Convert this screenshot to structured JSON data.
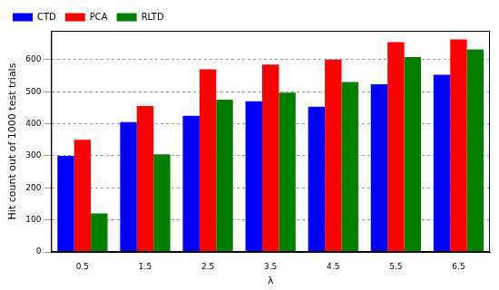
{
  "chart_data": {
    "type": "bar",
    "x_label": "λ",
    "y_label": "Hit count out of 1000 test trials",
    "categories": [
      "0.5",
      "1.5",
      "2.5",
      "3.5",
      "4.5",
      "5.5",
      "6.5"
    ],
    "series": [
      {
        "name": "CTD",
        "color": "#0000ff",
        "values": [
          300,
          405,
          425,
          470,
          453,
          523,
          553
        ]
      },
      {
        "name": "PCA",
        "color": "#ff0000",
        "values": [
          350,
          455,
          570,
          585,
          600,
          655,
          663
        ]
      },
      {
        "name": "RLTD",
        "color": "#008000",
        "values": [
          120,
          305,
          475,
          497,
          530,
          608,
          632
        ]
      }
    ],
    "ylim": [
      0,
      690
    ],
    "yticks": [
      0,
      100,
      200,
      300,
      400,
      500,
      600
    ],
    "grid": true,
    "legend": "upper left"
  }
}
